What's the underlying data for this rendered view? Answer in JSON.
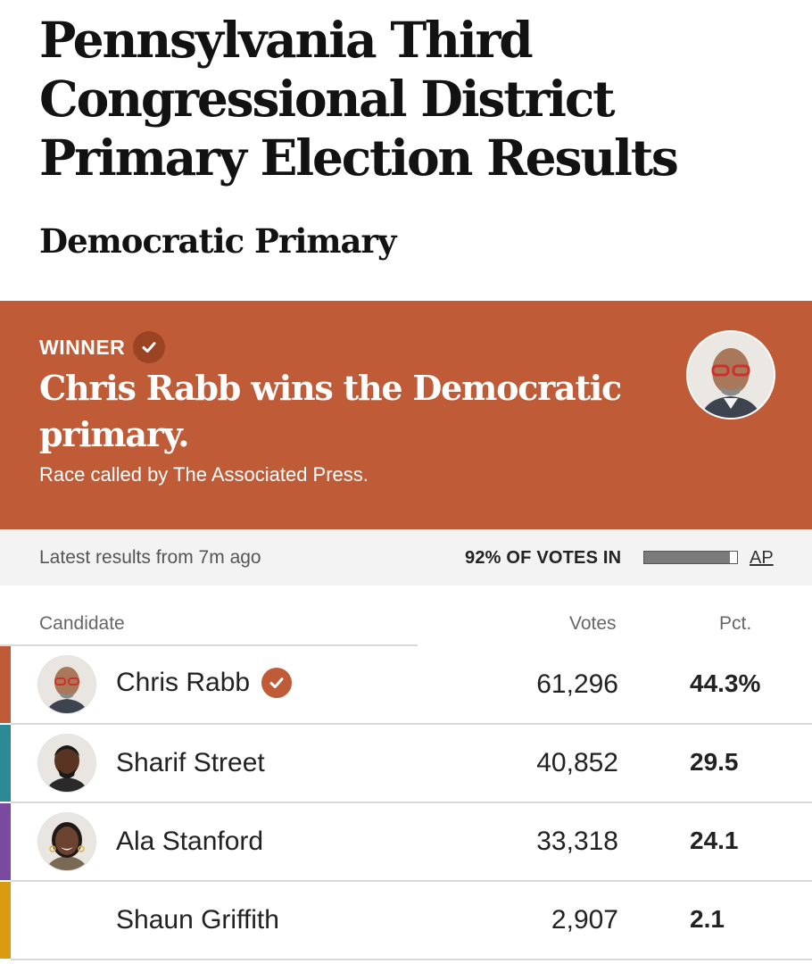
{
  "page": {
    "title": "Pennsylvania Third Congressional District Primary Election Results",
    "section": "Democratic Primary"
  },
  "winner": {
    "label": "WINNER",
    "headline": "Chris Rabb wins the Democratic primary.",
    "note": "Race called by The Associated Press.",
    "banner_color": "#bf5b36",
    "icon": "checkmark-circle-icon"
  },
  "status": {
    "latest": "Latest results from 7m ago",
    "votes_in": "92% OF VOTES IN",
    "reporting_fraction": 0.92,
    "source": "AP"
  },
  "table": {
    "headers": {
      "candidate": "Candidate",
      "votes": "Votes",
      "pct": "Pct."
    },
    "rows": [
      {
        "name": "Chris Rabb",
        "votes": "61,296",
        "pct": "44.3%",
        "winner": true,
        "color": "#bf5b36"
      },
      {
        "name": "Sharif Street",
        "votes": "40,852",
        "pct": "29.5",
        "winner": false,
        "color": "#2b8a95"
      },
      {
        "name": "Ala Stanford",
        "votes": "33,318",
        "pct": "24.1",
        "winner": false,
        "color": "#7a4aa0"
      },
      {
        "name": "Shaun Griffith",
        "votes": "2,907",
        "pct": "2.1",
        "winner": false,
        "color": "#d89b12"
      }
    ]
  }
}
